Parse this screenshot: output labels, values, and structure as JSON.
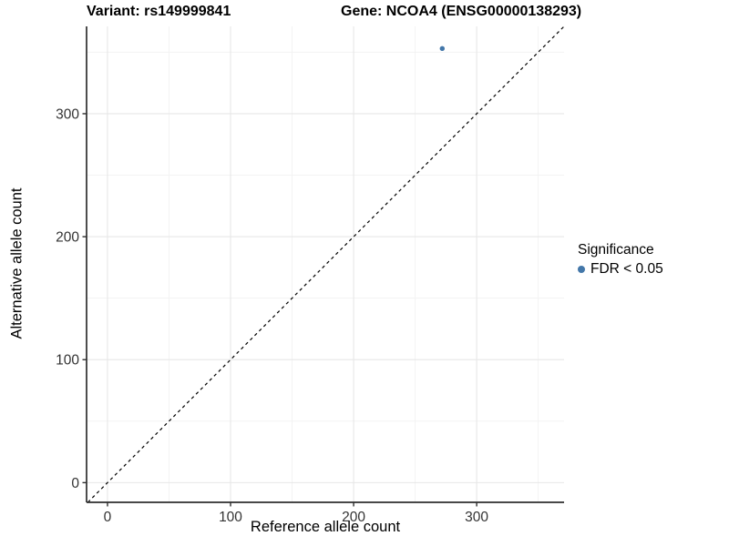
{
  "chart_data": {
    "type": "scatter",
    "titles": {
      "left": "Variant: rs149999841",
      "right": "Gene: NCOA4 (ENSG00000138293)"
    },
    "xlabel": "Reference allele count",
    "ylabel": "Alternative allele count",
    "xlim": [
      -17,
      371
    ],
    "ylim": [
      -16,
      371
    ],
    "x_ticks": [
      0,
      100,
      200,
      300
    ],
    "y_ticks": [
      0,
      100,
      200,
      300
    ],
    "x_minor_gridlines": [
      50,
      150,
      250,
      350
    ],
    "y_minor_gridlines": [
      50,
      150,
      250,
      350
    ],
    "grid": "major and minor, light gray on white",
    "series": [
      {
        "name": "FDR < 0.05",
        "color": "#4377a9",
        "marker": "circle",
        "points": [
          {
            "x": 272,
            "y": 353
          }
        ]
      }
    ],
    "reference_line": {
      "kind": "identity y = x",
      "style": "dashed",
      "color": "#000000",
      "from": -16,
      "to": 371
    },
    "legend": {
      "title": "Significance",
      "position": "right",
      "entries": [
        {
          "label": "FDR < 0.05",
          "color": "#4377a9"
        }
      ]
    },
    "style_colors": {
      "background": "#ffffff",
      "axis_line": "#2e2e2e",
      "tick_mark": "#2e2e2e",
      "tick_label": "#333333",
      "grid_major": "#e7e7e7",
      "grid_minor": "#f3f3f3"
    }
  }
}
